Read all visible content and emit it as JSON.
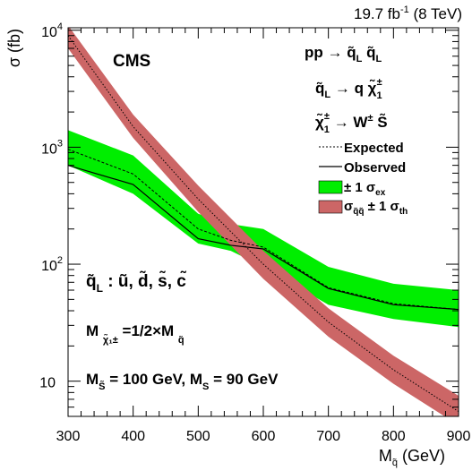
{
  "chart_data": {
    "type": "line",
    "lumi_label": "19.7 fb",
    "lumi_exp": "-1",
    "energy_label": " (8 TeV)",
    "experiment": "CMS",
    "ylabel": "σ (fb)",
    "xlabel_main": "M",
    "xlabel_sub": "q̃",
    "xlabel_unit": " (GeV)",
    "x_ticks": [
      "300",
      "400",
      "500",
      "600",
      "700",
      "800",
      "900"
    ],
    "y_ticks": [
      {
        "value": 10,
        "base": "10",
        "exp": ""
      },
      {
        "value": 100,
        "base": "10",
        "exp": "2"
      },
      {
        "value": 1000,
        "base": "10",
        "exp": "3"
      },
      {
        "value": 10000,
        "base": "10",
        "exp": "4"
      }
    ],
    "xlim": [
      300,
      900
    ],
    "ylim": [
      5,
      10500
    ],
    "yscale": "log",
    "grid": false,
    "legend_position": "top-right",
    "process_lines": [
      {
        "parts": [
          "pp → q̃",
          "L",
          " q̃",
          "L"
        ]
      },
      {
        "parts": [
          "q̃",
          "L",
          " → q  χ̃",
          "1",
          "±"
        ]
      },
      {
        "parts": [
          "χ̃",
          "1",
          "±",
          " → W",
          "±",
          "  S̃"
        ]
      }
    ],
    "legend": [
      {
        "key": "expected",
        "label": "Expected"
      },
      {
        "key": "observed",
        "label": "Observed"
      },
      {
        "key": "band_exp",
        "label": "± 1 σ",
        "sub": "ex"
      },
      {
        "key": "band_th",
        "label": "σ",
        "sub": "q̃q̃",
        "label2": " ± 1 σ",
        "sub2": "th"
      }
    ],
    "annotations": [
      {
        "parts": [
          "q̃",
          "L",
          " :  ũ,  d̃,  s̃,  c̃"
        ]
      },
      {
        "parts": [
          "M ",
          "χ̃₁±",
          " =1/2×M ",
          "q̃"
        ]
      },
      {
        "parts": [
          "M",
          "S̃",
          " = 100 GeV, M",
          "S",
          " = 90 GeV"
        ]
      }
    ],
    "colors": {
      "band_exp": "#00ee00",
      "band_th": "#cc6666",
      "line": "#000000"
    },
    "series": [
      {
        "key": "observed",
        "x": [
          300,
          400,
          500,
          550,
          600,
          700,
          800,
          900
        ],
        "y": [
          700,
          480,
          165,
          145,
          135,
          62,
          45,
          41
        ]
      },
      {
        "key": "expected",
        "x": [
          300,
          400,
          500,
          550,
          600,
          700,
          800,
          900
        ],
        "y": [
          960,
          590,
          200,
          160,
          140,
          63,
          46,
          41
        ]
      },
      {
        "key": "band_exp",
        "x": [
          300,
          400,
          500,
          550,
          600,
          700,
          800,
          900
        ],
        "upper": [
          1400,
          850,
          270,
          220,
          200,
          95,
          68,
          60
        ],
        "lower": [
          700,
          400,
          150,
          130,
          95,
          45,
          34,
          29
        ]
      },
      {
        "key": "band_th",
        "x": [
          300,
          400,
          500,
          600,
          700,
          800,
          900
        ],
        "center": [
          9000,
          1500,
          360,
          100,
          32,
          12.5,
          5.5
        ],
        "upper": [
          11000,
          1900,
          470,
          130,
          42,
          16.5,
          7.5
        ],
        "lower": [
          7000,
          1200,
          280,
          75,
          24,
          9.5,
          4.2
        ]
      }
    ]
  }
}
